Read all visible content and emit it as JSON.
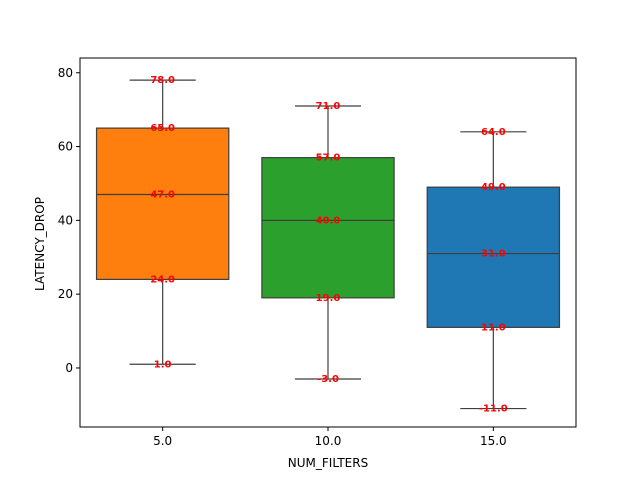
{
  "chart_data": {
    "type": "box",
    "xlabel": "NUM_FILTERS",
    "ylabel": "LATENCY_DROP",
    "categories": [
      "5.0",
      "10.0",
      "15.0"
    ],
    "ylim": [
      -16,
      84
    ],
    "yticks": [
      0,
      20,
      40,
      60,
      80
    ],
    "grid": false,
    "series": [
      {
        "category": "5.0",
        "color": "#ff7f0e",
        "whisker_low": 1.0,
        "q1": 24.0,
        "median": 47.0,
        "q3": 65.0,
        "whisker_high": 78.0,
        "labels": [
          "78.0",
          "65.0",
          "47.0",
          "24.0",
          "1.0"
        ]
      },
      {
        "category": "10.0",
        "color": "#2ca02c",
        "whisker_low": -3.0,
        "q1": 19.0,
        "median": 40.0,
        "q3": 57.0,
        "whisker_high": 71.0,
        "labels": [
          "71.0",
          "57.0",
          "40.0",
          "19.0",
          "-3.0"
        ]
      },
      {
        "category": "15.0",
        "color": "#1f77b4",
        "whisker_low": -11.0,
        "q1": 11.0,
        "median": 31.0,
        "q3": 49.0,
        "whisker_high": 64.0,
        "labels": [
          "64.0",
          "49.0",
          "31.0",
          "11.0",
          "-11.0"
        ]
      }
    ]
  }
}
